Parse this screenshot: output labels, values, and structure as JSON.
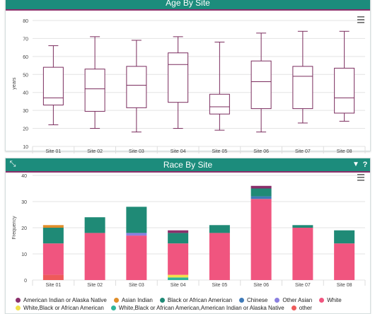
{
  "charts": {
    "age": {
      "title": "Age By Site",
      "menu_icon": "hamburger-menu-icon"
    },
    "race": {
      "title": "Race By Site",
      "expand_icon": "expand-icon",
      "filter_icon": "filter-icon",
      "help_label": "?",
      "menu_icon": "hamburger-menu-icon"
    }
  },
  "chart_data": [
    {
      "type": "box",
      "title": "Age By Site",
      "xlabel": "",
      "ylabel": "years",
      "ylim": [
        10,
        80
      ],
      "yticks": [
        10,
        20,
        30,
        40,
        50,
        60,
        70,
        80
      ],
      "grid": true,
      "color": "#7b2d5e",
      "categories": [
        "Site 01",
        "Site 02",
        "Site 03",
        "Site 04",
        "Site 05",
        "Site 06",
        "Site 07",
        "Site 08"
      ],
      "boxes": [
        {
          "min": 22,
          "q1": 33,
          "median": 37,
          "q3": 54,
          "max": 66
        },
        {
          "min": 20,
          "q1": 29.5,
          "median": 42,
          "q3": 53,
          "max": 71
        },
        {
          "min": 18,
          "q1": 31.5,
          "median": 44,
          "q3": 54.5,
          "max": 69
        },
        {
          "min": 20,
          "q1": 34.5,
          "median": 55.5,
          "q3": 62,
          "max": 71
        },
        {
          "min": 19,
          "q1": 28,
          "median": 32,
          "q3": 39,
          "max": 68
        },
        {
          "min": 18,
          "q1": 31,
          "median": 46,
          "q3": 57.5,
          "max": 73
        },
        {
          "min": 23,
          "q1": 31,
          "median": 49,
          "q3": 54.5,
          "max": 74
        },
        {
          "min": 24,
          "q1": 28.5,
          "median": 37,
          "q3": 53.5,
          "max": 74
        }
      ]
    },
    {
      "type": "bar",
      "stacked": true,
      "title": "Race By Site",
      "xlabel": "",
      "ylabel": "Frequency",
      "ylim": [
        0,
        40
      ],
      "yticks": [
        0,
        10,
        20,
        30,
        40
      ],
      "grid": true,
      "legend_position": "bottom",
      "categories": [
        "Site 01",
        "Site 02",
        "Site 03",
        "Site 04",
        "Site 05",
        "Site 06",
        "Site 07",
        "Site 08"
      ],
      "series": [
        {
          "name": "other",
          "color": "#ee5a5a",
          "values": [
            2,
            0,
            0,
            0,
            0,
            0,
            0,
            0
          ]
        },
        {
          "name": "White,Black or African American,American Indian or Alaska Native",
          "color": "#2fb59a",
          "values": [
            0,
            0,
            0,
            1,
            0,
            0,
            0,
            0
          ]
        },
        {
          "name": "White,Black or African American",
          "color": "#f2e04a",
          "values": [
            0,
            0,
            0,
            1,
            0,
            0,
            0,
            0
          ]
        },
        {
          "name": "White",
          "color": "#f0557f",
          "values": [
            12,
            18,
            17,
            12,
            18,
            31,
            20,
            14
          ]
        },
        {
          "name": "Other Asian",
          "color": "#8a7fe0",
          "values": [
            0,
            0,
            1,
            0,
            0,
            0,
            0,
            0
          ]
        },
        {
          "name": "Chinese",
          "color": "#3f7ab8",
          "values": [
            0,
            0,
            0,
            0,
            0,
            1,
            0,
            0
          ]
        },
        {
          "name": "Black or African American",
          "color": "#1f8a76",
          "values": [
            6,
            6,
            10,
            4,
            3,
            3,
            1,
            5
          ]
        },
        {
          "name": "Asian Indian",
          "color": "#e08e2a",
          "values": [
            1,
            0,
            0,
            0,
            0,
            0,
            0,
            0
          ]
        },
        {
          "name": "American Indian or Alaska Native",
          "color": "#8b2f6b",
          "values": [
            0,
            0,
            0,
            1,
            0,
            1,
            0,
            0
          ]
        }
      ],
      "legend_order": [
        "American Indian or Alaska Native",
        "Asian Indian",
        "Black or African American",
        "Chinese",
        "Other Asian",
        "White",
        "White,Black or African American",
        "White,Black or African American,American Indian or Alaska Native",
        "other"
      ]
    }
  ]
}
